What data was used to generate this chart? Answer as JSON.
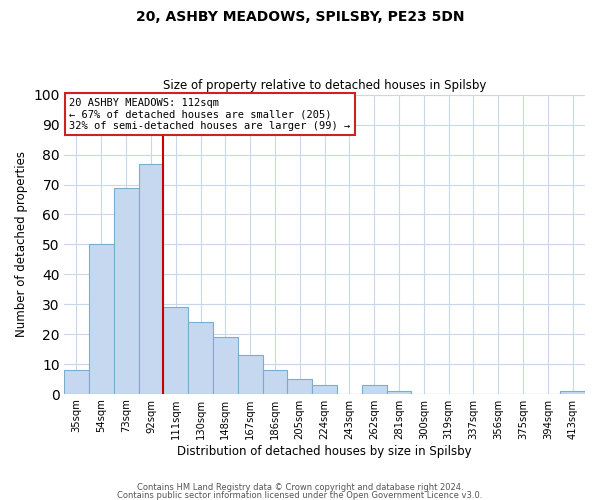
{
  "title1": "20, ASHBY MEADOWS, SPILSBY, PE23 5DN",
  "title2": "Size of property relative to detached houses in Spilsby",
  "xlabel": "Distribution of detached houses by size in Spilsby",
  "ylabel": "Number of detached properties",
  "categories": [
    "35sqm",
    "54sqm",
    "73sqm",
    "92sqm",
    "111sqm",
    "130sqm",
    "148sqm",
    "167sqm",
    "186sqm",
    "205sqm",
    "224sqm",
    "243sqm",
    "262sqm",
    "281sqm",
    "300sqm",
    "319sqm",
    "337sqm",
    "356sqm",
    "375sqm",
    "394sqm",
    "413sqm"
  ],
  "values": [
    8,
    50,
    69,
    77,
    29,
    24,
    19,
    13,
    8,
    5,
    3,
    0,
    3,
    1,
    0,
    0,
    0,
    0,
    0,
    0,
    1
  ],
  "bar_color": "#c5d8f0",
  "bar_edge_color": "#7aadce",
  "vline_x": 4.5,
  "vline_color": "#cc0000",
  "ylim": [
    0,
    100
  ],
  "annotation_text": "20 ASHBY MEADOWS: 112sqm\n← 67% of detached houses are smaller (205)\n32% of semi-detached houses are larger (99) →",
  "footer1": "Contains HM Land Registry data © Crown copyright and database right 2024.",
  "footer2": "Contains public sector information licensed under the Open Government Licence v3.0.",
  "background_color": "#ffffff",
  "grid_color": "#c8d8ea"
}
